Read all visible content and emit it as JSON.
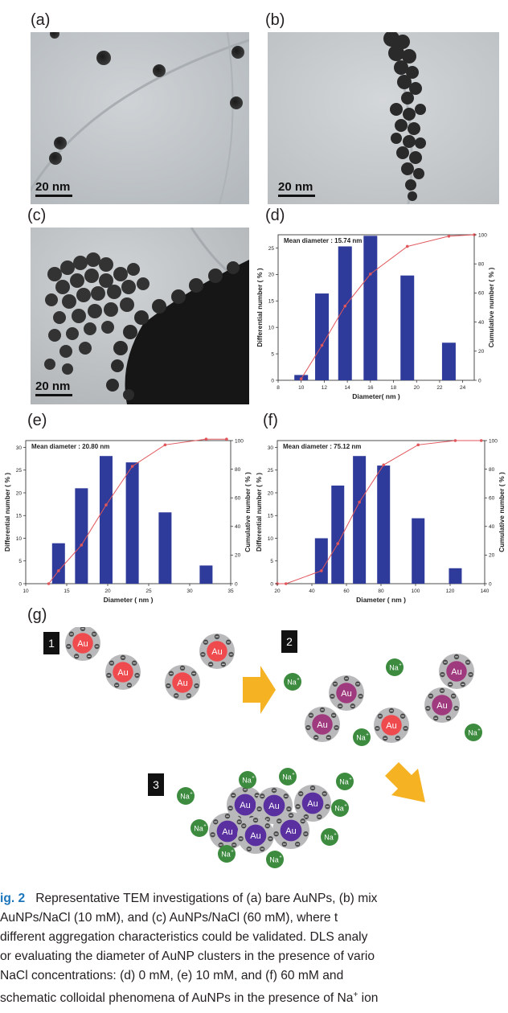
{
  "panels": {
    "a": {
      "label": "(a)",
      "scale_label": "20 nm"
    },
    "b": {
      "label": "(b)",
      "scale_label": "20 nm"
    },
    "c": {
      "label": "(c)",
      "scale_label": "20 nm"
    },
    "d": {
      "label": "(d)"
    },
    "e": {
      "label": "(e)"
    },
    "f": {
      "label": "(f)"
    },
    "g": {
      "label": "(g)"
    }
  },
  "chart_data": [
    {
      "type": "bar",
      "panel": "d",
      "annotation": "Mean diameter : 15.74 nm",
      "xlabel": "Diameter( nm )",
      "ylabel": "Differential number ( % )",
      "y2label": "Cumulative number ( % )",
      "xlim": [
        8,
        25
      ],
      "ylim": [
        0,
        27.5
      ],
      "y2lim": [
        0,
        100
      ],
      "xticks": [
        8,
        10,
        12,
        14,
        16,
        18,
        20,
        22,
        24
      ],
      "yticks": [
        0,
        5,
        10,
        15,
        20,
        25
      ],
      "y2ticks": [
        0,
        20,
        40,
        60,
        80,
        100
      ],
      "bars": {
        "x": [
          10.0,
          11.8,
          13.8,
          16.0,
          19.2,
          22.8
        ],
        "values": [
          1.0,
          16.4,
          25.3,
          27.3,
          19.8,
          7.1
        ]
      },
      "cumulative": {
        "x": [
          10.0,
          11.8,
          13.8,
          16.0,
          19.2,
          22.8,
          25.0
        ],
        "values": [
          1,
          24,
          51,
          73,
          92,
          99,
          100
        ]
      },
      "bar_color": "#2e3b9a",
      "line_color": "#e0565b"
    },
    {
      "type": "bar",
      "panel": "e",
      "annotation": "Mean diameter : 20.80 nm",
      "xlabel": "Diameter ( nm )",
      "ylabel": "Differential number ( % )",
      "y2label": "Cumulative number ( % )",
      "xlim": [
        10,
        35
      ],
      "ylim": [
        0,
        31.5
      ],
      "y2lim": [
        0,
        100
      ],
      "xticks": [
        10,
        15,
        20,
        25,
        30,
        35
      ],
      "yticks": [
        0,
        5,
        10,
        15,
        20,
        25,
        30
      ],
      "y2ticks": [
        0,
        20,
        40,
        60,
        80,
        100
      ],
      "bars": {
        "x": [
          14.0,
          16.8,
          19.8,
          23.0,
          27.0,
          32.0
        ],
        "values": [
          8.9,
          21.0,
          28.1,
          26.7,
          15.7,
          4.0
        ]
      },
      "cumulative": {
        "x": [
          12.8,
          14.0,
          16.8,
          19.8,
          23.0,
          27.0,
          32.0,
          34.5
        ],
        "values": [
          0,
          9,
          27,
          55,
          82,
          97,
          101,
          101
        ]
      },
      "bar_color": "#2e3b9a",
      "line_color": "#e0565b"
    },
    {
      "type": "bar",
      "panel": "f",
      "annotation": "Mean diameter : 75.12 nm",
      "xlabel": "Diameter ( nm )",
      "ylabel": "Differential number ( % )",
      "y2label": "Cumulative number ( % )",
      "xlim": [
        20,
        140
      ],
      "ylim": [
        0,
        31.5
      ],
      "y2lim": [
        0,
        100
      ],
      "xticks": [
        20,
        40,
        60,
        80,
        100,
        120,
        140
      ],
      "yticks": [
        0,
        5,
        10,
        15,
        20,
        25,
        30
      ],
      "y2ticks": [
        0,
        20,
        40,
        60,
        80,
        100
      ],
      "bars": {
        "x": [
          45.5,
          55.0,
          67.5,
          81.5,
          101.5,
          123.0
        ],
        "values": [
          10.0,
          21.6,
          28.1,
          26.0,
          14.4,
          3.4
        ]
      },
      "cumulative": {
        "x": [
          20.0,
          25.0,
          45.5,
          55.0,
          67.5,
          81.5,
          101.5,
          123.0,
          138.0
        ],
        "values": [
          0,
          0,
          9,
          28,
          57,
          83,
          97,
          100,
          100
        ]
      },
      "bar_color": "#2e3b9a",
      "line_color": "#e0565b"
    }
  ],
  "scheme": {
    "steps": [
      "1",
      "2",
      "3"
    ],
    "particle_label": "Au",
    "ion_label": "Na",
    "ion_charge": "+",
    "colors": {
      "bare": "#ef4b4f",
      "mixed": "#a03a7e",
      "aggregated": "#5a2fa0",
      "sodium": "#3d8b3f",
      "shell": "#b9b9bb",
      "arrow": "#f5b324"
    }
  },
  "caption": {
    "fig": "ig. 2",
    "lines": [
      "Representative TEM investigations of (a) bare AuNPs, (b) mix",
      "AuNPs/NaCl (10 mM), and (c) AuNPs/NaCl (60 mM), where t",
      "different aggregation characteristics could be validated. DLS analy",
      "or evaluating the diameter of AuNP clusters in the presence of vario",
      "NaCl concentrations: (d) 0 mM, (e) 10 mM, and (f) 60 mM and",
      "schematic colloidal phenomena of AuNPs in the presence of Na",
      "+",
      " ion"
    ]
  }
}
